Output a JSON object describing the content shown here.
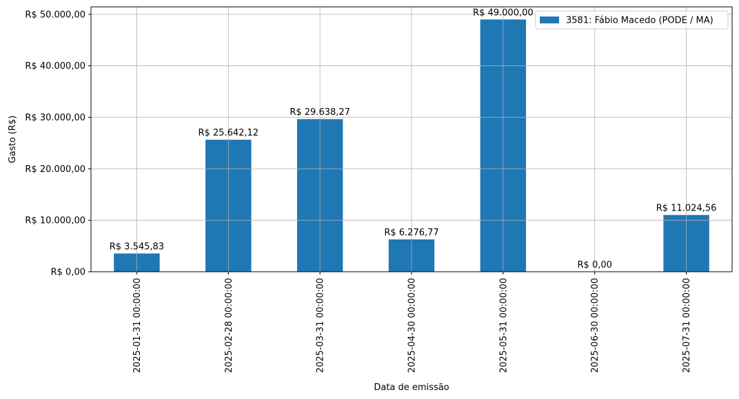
{
  "chart_data": {
    "type": "bar",
    "categories": [
      "2025-01-31 00:00:00",
      "2025-02-28 00:00:00",
      "2025-03-31 00:00:00",
      "2025-04-30 00:00:00",
      "2025-05-31 00:00:00",
      "2025-06-30 00:00:00",
      "2025-07-31 00:00:00"
    ],
    "series": [
      {
        "name": "3581: Fábio Macedo (PODE / MA)",
        "values": [
          3545.83,
          25642.12,
          29638.27,
          6276.77,
          49000.0,
          0.0,
          11024.56
        ],
        "color": "#1f77b4"
      }
    ],
    "data_labels": [
      "R$ 3.545,83",
      "R$ 25.642,12",
      "R$ 29.638,27",
      "R$ 6.276,77",
      "R$ 49.000,00",
      "R$ 0,00",
      "R$ 11.024,56"
    ],
    "xlabel": "Data de emissão",
    "ylabel": "Gasto (R$)",
    "ylim": [
      0,
      51450
    ],
    "yticks": [
      0,
      10000,
      20000,
      30000,
      40000,
      50000
    ],
    "ytick_labels": [
      "R$ 0,00",
      "R$ 10.000,00",
      "R$ 20.000,00",
      "R$ 30.000,00",
      "R$ 40.000,00",
      "R$ 50.000,00"
    ],
    "grid": true,
    "legend_position": "top-right"
  }
}
